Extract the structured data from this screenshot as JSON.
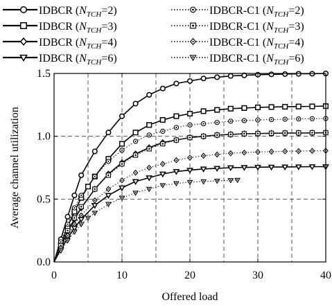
{
  "chart_data": {
    "type": "line",
    "xlabel": "Offered load",
    "ylabel": "Average channel utilization",
    "xlim": [
      0,
      40
    ],
    "ylim": [
      0,
      1.5
    ],
    "xticks": [
      "0",
      "10",
      "20",
      "30",
      "40"
    ],
    "yticks": [
      "0.0",
      "0.5",
      "1.0",
      "1.5"
    ],
    "grid": "dashed",
    "legend_position": "top (above plot area), two columns",
    "series": [
      {
        "name": "IDBCR (NTCH=2)",
        "base": "IDBCR",
        "sub": "TCH",
        "eq": "=2",
        "marker": "circle",
        "line": "solid",
        "points": [
          [
            0,
            0
          ],
          [
            1,
            0.18
          ],
          [
            2,
            0.36
          ],
          [
            3,
            0.53
          ],
          [
            4,
            0.69
          ],
          [
            6,
            0.88
          ],
          [
            8,
            1.03
          ],
          [
            10,
            1.16
          ],
          [
            12,
            1.26
          ],
          [
            14,
            1.33
          ],
          [
            16,
            1.38
          ],
          [
            18,
            1.42
          ],
          [
            20,
            1.44
          ],
          [
            22,
            1.46
          ],
          [
            24,
            1.47
          ],
          [
            26,
            1.48
          ],
          [
            28,
            1.485
          ],
          [
            30,
            1.49
          ],
          [
            32,
            1.493
          ],
          [
            34,
            1.495
          ],
          [
            36,
            1.497
          ],
          [
            38,
            1.498
          ],
          [
            40,
            1.5
          ]
        ]
      },
      {
        "name": "IDBCR (NTCH=3)",
        "base": "IDBCR",
        "sub": "TCH",
        "eq": "=3",
        "marker": "square",
        "line": "solid",
        "points": [
          [
            0,
            0
          ],
          [
            1,
            0.14
          ],
          [
            2,
            0.28
          ],
          [
            3,
            0.4
          ],
          [
            4,
            0.51
          ],
          [
            5,
            0.6
          ],
          [
            6,
            0.68
          ],
          [
            8,
            0.82
          ],
          [
            10,
            0.94
          ],
          [
            12,
            1.03
          ],
          [
            14,
            1.09
          ],
          [
            16,
            1.13
          ],
          [
            18,
            1.16
          ],
          [
            20,
            1.18
          ],
          [
            22,
            1.2
          ],
          [
            24,
            1.21
          ],
          [
            26,
            1.22
          ],
          [
            28,
            1.225
          ],
          [
            30,
            1.23
          ],
          [
            32,
            1.233
          ],
          [
            34,
            1.235
          ],
          [
            36,
            1.237
          ],
          [
            38,
            1.238
          ],
          [
            40,
            1.24
          ]
        ]
      },
      {
        "name": "IDBCR (NTCH=4)",
        "base": "IDBCR",
        "sub": "TCH",
        "eq": "=4",
        "marker": "diamond",
        "line": "solid",
        "points": [
          [
            0,
            0
          ],
          [
            1,
            0.12
          ],
          [
            2,
            0.24
          ],
          [
            3,
            0.34
          ],
          [
            4,
            0.43
          ],
          [
            6,
            0.58
          ],
          [
            8,
            0.7
          ],
          [
            10,
            0.79
          ],
          [
            12,
            0.86
          ],
          [
            14,
            0.91
          ],
          [
            16,
            0.95
          ],
          [
            18,
            0.97
          ],
          [
            20,
            0.99
          ],
          [
            22,
            1.0
          ],
          [
            24,
            1.01
          ],
          [
            26,
            1.015
          ],
          [
            28,
            1.02
          ],
          [
            30,
            1.022
          ],
          [
            32,
            1.024
          ],
          [
            34,
            1.025
          ],
          [
            36,
            1.026
          ],
          [
            38,
            1.027
          ],
          [
            40,
            1.028
          ]
        ]
      },
      {
        "name": "IDBCR (NTCH=6)",
        "base": "IDBCR",
        "sub": "TCH",
        "eq": "=6",
        "marker": "triangle-down",
        "line": "solid",
        "points": [
          [
            0,
            0
          ],
          [
            1,
            0.1
          ],
          [
            2,
            0.19
          ],
          [
            3,
            0.27
          ],
          [
            4,
            0.34
          ],
          [
            6,
            0.45
          ],
          [
            8,
            0.53
          ],
          [
            10,
            0.59
          ],
          [
            12,
            0.64
          ],
          [
            14,
            0.67
          ],
          [
            16,
            0.7
          ],
          [
            18,
            0.72
          ],
          [
            20,
            0.73
          ],
          [
            22,
            0.74
          ],
          [
            24,
            0.745
          ],
          [
            26,
            0.75
          ],
          [
            28,
            0.752
          ],
          [
            30,
            0.754
          ],
          [
            32,
            0.755
          ],
          [
            34,
            0.756
          ],
          [
            36,
            0.757
          ],
          [
            38,
            0.758
          ],
          [
            40,
            0.758
          ]
        ]
      },
      {
        "name": "IDBCR-C1 (NTCH=2)",
        "base": "IDBCR-C1",
        "sub": "TCH",
        "eq": "=2",
        "marker": "circle",
        "line": "dotted",
        "points": [
          [
            0,
            0
          ],
          [
            1,
            0.16
          ],
          [
            2,
            0.3
          ],
          [
            3,
            0.43
          ],
          [
            4,
            0.53
          ],
          [
            6,
            0.68
          ],
          [
            8,
            0.8
          ],
          [
            10,
            0.89
          ],
          [
            12,
            0.96
          ],
          [
            14,
            1.01
          ],
          [
            16,
            1.04
          ],
          [
            18,
            1.07
          ],
          [
            20,
            1.09
          ],
          [
            22,
            1.1
          ],
          [
            24,
            1.11
          ],
          [
            26,
            1.12
          ],
          [
            28,
            1.125
          ],
          [
            30,
            1.13
          ],
          [
            32,
            1.133
          ],
          [
            34,
            1.136
          ],
          [
            36,
            1.138
          ],
          [
            38,
            1.14
          ],
          [
            40,
            1.141
          ]
        ]
      },
      {
        "name": "IDBCR-C1 (NTCH=3)",
        "base": "IDBCR-C1",
        "sub": "TCH",
        "eq": "=3",
        "marker": "square",
        "line": "dotted",
        "points": [
          [
            0,
            0
          ],
          [
            1,
            0.13
          ],
          [
            2,
            0.25
          ],
          [
            3,
            0.35
          ],
          [
            4,
            0.44
          ],
          [
            6,
            0.58
          ],
          [
            8,
            0.69
          ],
          [
            10,
            0.78
          ],
          [
            12,
            0.85
          ],
          [
            14,
            0.9
          ],
          [
            16,
            0.94
          ],
          [
            18,
            0.97
          ],
          [
            20,
            0.99
          ],
          [
            22,
            1.0
          ],
          [
            24,
            1.01
          ],
          [
            26,
            1.015
          ],
          [
            28,
            1.02
          ],
          [
            30,
            1.022
          ],
          [
            32,
            1.024
          ],
          [
            34,
            1.026
          ],
          [
            36,
            1.027
          ],
          [
            38,
            1.028
          ],
          [
            40,
            1.029
          ]
        ]
      },
      {
        "name": "IDBCR-C1 (NTCH=4)",
        "base": "IDBCR-C1",
        "sub": "TCH",
        "eq": "=4",
        "marker": "diamond",
        "line": "dotted",
        "points": [
          [
            0,
            0
          ],
          [
            1,
            0.11
          ],
          [
            2,
            0.21
          ],
          [
            3,
            0.3
          ],
          [
            4,
            0.37
          ],
          [
            6,
            0.49
          ],
          [
            8,
            0.58
          ],
          [
            10,
            0.65
          ],
          [
            12,
            0.71
          ],
          [
            14,
            0.75
          ],
          [
            16,
            0.78
          ],
          [
            18,
            0.81
          ],
          [
            20,
            0.83
          ],
          [
            22,
            0.845
          ],
          [
            24,
            0.855
          ],
          [
            26,
            0.865
          ],
          [
            28,
            0.87
          ],
          [
            30,
            0.875
          ],
          [
            32,
            0.878
          ],
          [
            34,
            0.88
          ],
          [
            36,
            0.882
          ],
          [
            38,
            0.884
          ],
          [
            40,
            0.885
          ]
        ]
      },
      {
        "name": "IDBCR-C1 (NTCH=6)",
        "base": "IDBCR-C1",
        "sub": "TCH",
        "eq": "=6",
        "marker": "triangle-down",
        "line": "dotted",
        "points": [
          [
            0,
            0
          ],
          [
            1,
            0.09
          ],
          [
            2,
            0.17
          ],
          [
            3,
            0.24
          ],
          [
            4,
            0.3
          ],
          [
            5,
            0.35
          ],
          [
            6,
            0.39
          ],
          [
            8,
            0.46
          ],
          [
            10,
            0.51
          ],
          [
            12,
            0.55
          ],
          [
            14,
            0.58
          ],
          [
            16,
            0.61
          ],
          [
            18,
            0.625
          ],
          [
            20,
            0.635
          ],
          [
            22,
            0.64
          ],
          [
            24,
            0.645
          ],
          [
            26,
            0.65
          ],
          [
            27,
            0.652
          ]
        ]
      }
    ]
  }
}
